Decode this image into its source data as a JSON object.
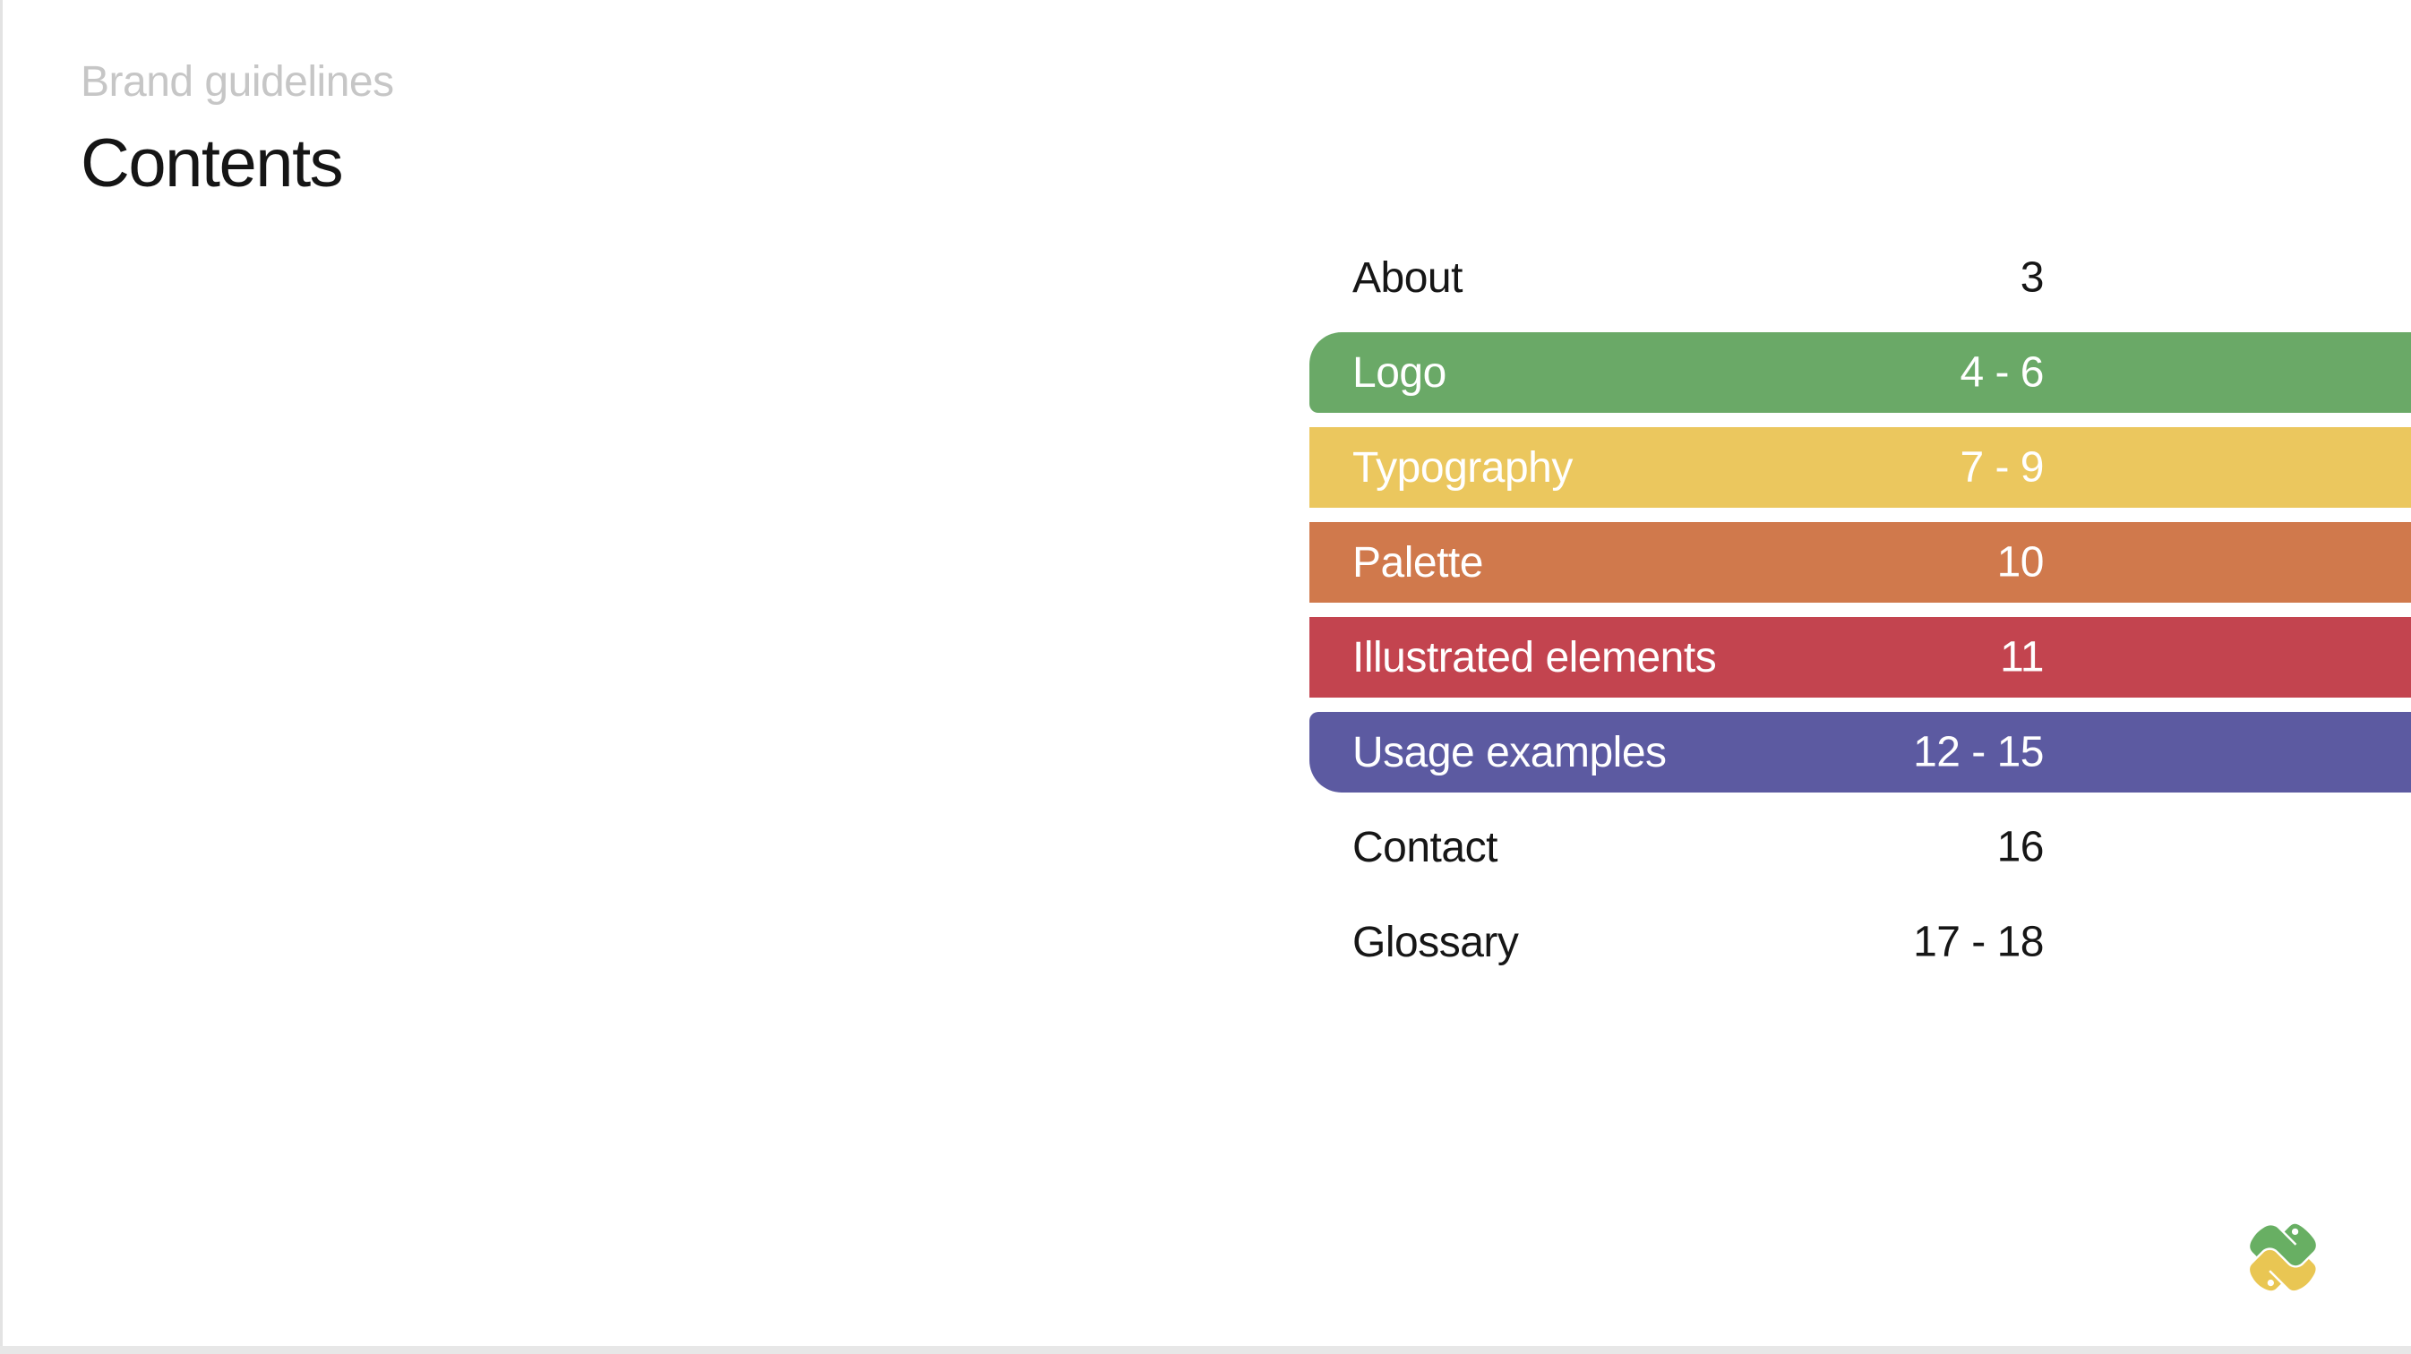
{
  "page": {
    "eyebrow": "Brand guidelines",
    "title": "Contents"
  },
  "toc": {
    "items": [
      {
        "label": "About",
        "pages": "3",
        "color": null
      },
      {
        "label": "Logo",
        "pages": "4 - 6",
        "color": "#6aa967",
        "rounded": "top"
      },
      {
        "label": "Typography",
        "pages": "7 - 9",
        "color": "#ebc75e"
      },
      {
        "label": "Palette",
        "pages": "10",
        "color": "#d0794c"
      },
      {
        "label": "Illustrated elements",
        "pages": "11",
        "color": "#c3444f"
      },
      {
        "label": "Usage examples",
        "pages": "12 - 15",
        "color": "#5c5aa1",
        "rounded": "bottom"
      },
      {
        "label": "Contact",
        "pages": "16",
        "color": null
      },
      {
        "label": "Glossary",
        "pages": "17 - 18",
        "color": null
      }
    ]
  },
  "logo": {
    "name": "python-knot-logo",
    "green": "#68af63",
    "yellow": "#e9c653"
  }
}
